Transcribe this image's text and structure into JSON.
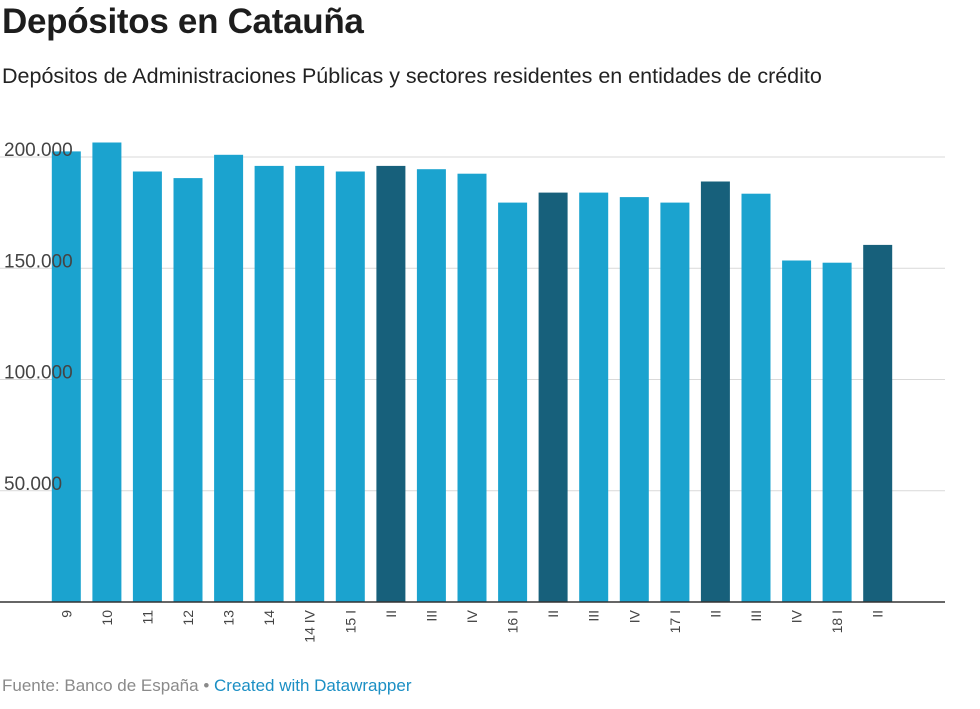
{
  "title": "Depósitos en Catauña",
  "subtitle": "Depósitos de Administraciones Públicas y sectores residentes en entidades de crédito",
  "footer": {
    "source": "Fuente: Banco de España",
    "separator": " • ",
    "credit": "Created with Datawrapper"
  },
  "colors": {
    "bar": "#1ba3cf",
    "bar_highlight": "#17607b",
    "grid": "#d9d9d9",
    "axis": "#333333"
  },
  "chart_data": {
    "type": "bar",
    "title": "Depósitos en Catauña",
    "subtitle": "Depósitos de Administraciones Públicas y sectores residentes en entidades de crédito",
    "xlabel": "",
    "ylabel": "",
    "categories": [
      "9",
      "10",
      "11",
      "12",
      "13",
      "14",
      "14 IV",
      "15 I",
      "II",
      "III",
      "IV",
      "16 I",
      "II",
      "III",
      "IV",
      "17 I",
      "II",
      "III",
      "IV",
      "18 I",
      "II"
    ],
    "values": [
      202500,
      206500,
      193500,
      190500,
      201000,
      196000,
      196000,
      193500,
      196000,
      194500,
      192500,
      179500,
      184000,
      184000,
      182000,
      179500,
      189000,
      183500,
      153500,
      152500,
      160500
    ],
    "highlighted": [
      false,
      false,
      false,
      false,
      false,
      false,
      false,
      false,
      true,
      false,
      false,
      false,
      true,
      false,
      false,
      false,
      true,
      false,
      false,
      false,
      true
    ],
    "yticks": [
      50000,
      100000,
      150000,
      200000
    ],
    "ytick_labels": [
      "50.000",
      "100.000",
      "150.000",
      "200.000"
    ],
    "ylim": [
      0,
      210000
    ],
    "grid": true
  }
}
